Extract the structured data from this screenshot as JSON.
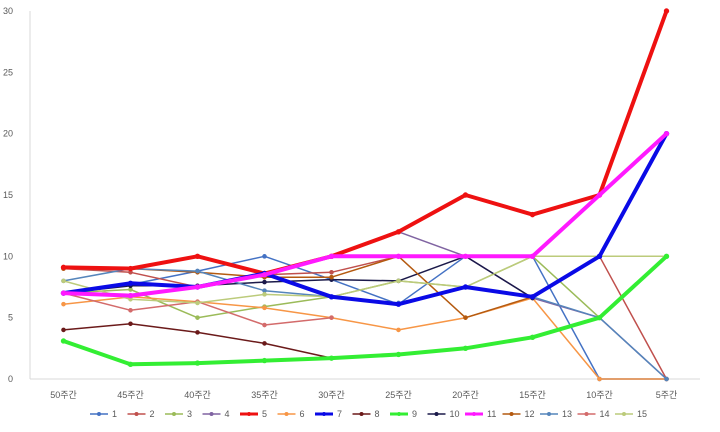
{
  "chart_data": {
    "type": "line",
    "title": "",
    "xlabel": "",
    "ylabel": "",
    "categories": [
      "50주간",
      "45주간",
      "40주간",
      "35주간",
      "30주간",
      "25주간",
      "20주간",
      "15주간",
      "10주간",
      "5주간"
    ],
    "ylim": [
      0,
      30
    ],
    "yticks": [
      0,
      5,
      10,
      15,
      20,
      25,
      30
    ],
    "grid": false,
    "legend_position": "bottom",
    "series": [
      {
        "name": "1",
        "color": "#4472C4",
        "bold": false,
        "values": [
          7,
          7.7,
          8.8,
          10,
          8.1,
          6.1,
          10,
          10,
          0,
          0
        ]
      },
      {
        "name": "2",
        "color": "#C0504D",
        "bold": false,
        "values": [
          9,
          8.7,
          7.5,
          8.5,
          8.7,
          10,
          10,
          10,
          10,
          0
        ]
      },
      {
        "name": "3",
        "color": "#9BBB59",
        "bold": false,
        "values": [
          7,
          7.3,
          5,
          5.9,
          6.7,
          8,
          7.5,
          10,
          5,
          10
        ]
      },
      {
        "name": "4",
        "color": "#8064A2",
        "bold": false,
        "values": [
          7,
          6.7,
          7.5,
          8.6,
          10,
          12,
          10,
          6.6,
          5,
          0
        ]
      },
      {
        "name": "5",
        "color": "#EE1111",
        "bold": true,
        "values": [
          9.1,
          9,
          10,
          8.6,
          10,
          12,
          15,
          13.4,
          15,
          30
        ]
      },
      {
        "name": "6",
        "color": "#F79646",
        "bold": false,
        "values": [
          6.1,
          6.7,
          6.3,
          5.8,
          5,
          4,
          5,
          6.6,
          0,
          0
        ]
      },
      {
        "name": "7",
        "color": "#0A0AE6",
        "bold": true,
        "values": [
          7,
          7.8,
          7.5,
          8.6,
          6.7,
          6.1,
          7.5,
          6.7,
          10,
          20
        ]
      },
      {
        "name": "8",
        "color": "#6B1A1A",
        "bold": false,
        "values": [
          4,
          4.5,
          3.8,
          2.9,
          1.7,
          null,
          null,
          null,
          null,
          null
        ]
      },
      {
        "name": "9",
        "color": "#33EE33",
        "bold": true,
        "values": [
          3.1,
          1.2,
          1.3,
          1.5,
          1.7,
          2,
          2.5,
          3.4,
          5,
          10
        ]
      },
      {
        "name": "10",
        "color": "#1B1A4A",
        "bold": false,
        "values": [
          7,
          7.6,
          7.6,
          7.9,
          8.1,
          8,
          10,
          6.6,
          10,
          20
        ]
      },
      {
        "name": "11",
        "color": "#FF19FF",
        "bold": true,
        "values": [
          7,
          6.8,
          7.5,
          8.5,
          10,
          10,
          10,
          10,
          15,
          20
        ]
      },
      {
        "name": "12",
        "color": "#B45A10",
        "bold": false,
        "values": [
          9,
          9,
          8.7,
          8.3,
          8.3,
          10,
          5,
          6.7,
          10,
          10
        ]
      },
      {
        "name": "13",
        "color": "#5585BB",
        "bold": false,
        "values": [
          8,
          9,
          8.8,
          7.2,
          6.7,
          6.2,
          7.5,
          6.7,
          5,
          0
        ]
      },
      {
        "name": "14",
        "color": "#D36B6B",
        "bold": false,
        "values": [
          7,
          5.6,
          6.3,
          4.4,
          5,
          null,
          null,
          null,
          null,
          null
        ]
      },
      {
        "name": "15",
        "color": "#BCCB7B",
        "bold": false,
        "values": [
          8,
          6.5,
          6.2,
          6.9,
          6.7,
          8,
          7.5,
          10,
          10,
          10
        ]
      }
    ]
  }
}
